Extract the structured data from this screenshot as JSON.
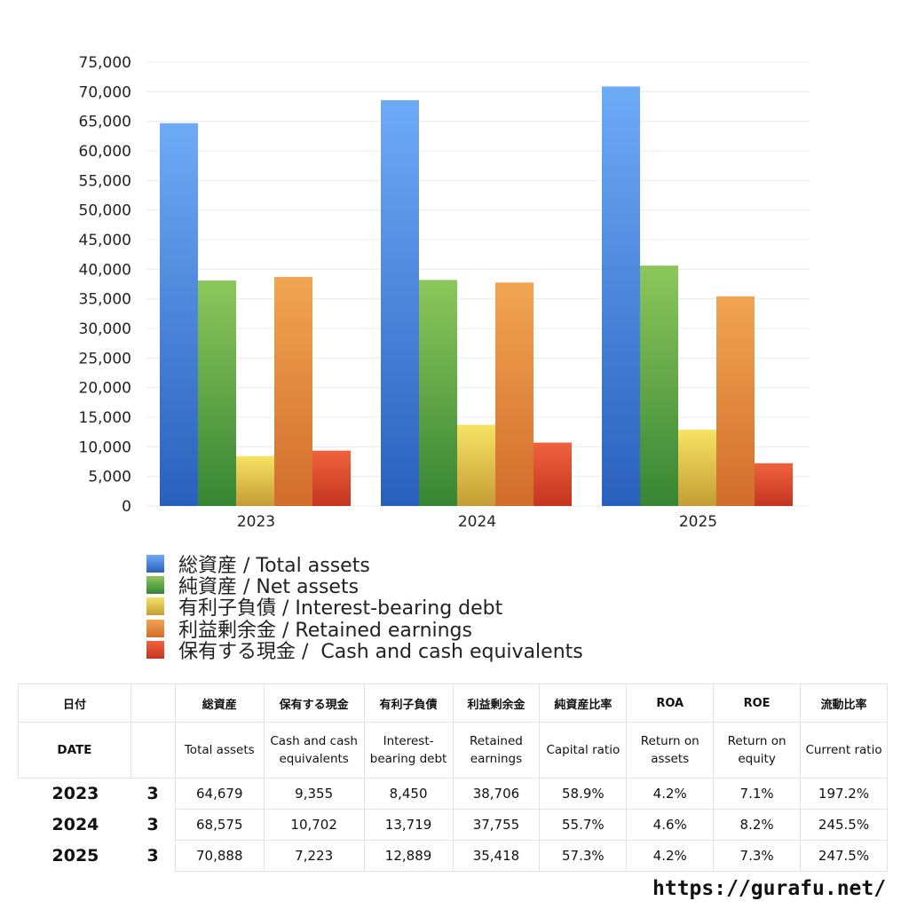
{
  "chart_data": {
    "type": "bar",
    "categories": [
      "2023",
      "2024",
      "2025"
    ],
    "ylim": [
      0,
      75000
    ],
    "yticks": [
      "0",
      "5,000",
      "10,000",
      "15,000",
      "20,000",
      "25,000",
      "30,000",
      "35,000",
      "40,000",
      "45,000",
      "50,000",
      "55,000",
      "60,000",
      "65,000",
      "70,000",
      "75,000"
    ],
    "grid": true,
    "legend_position": "bottom",
    "series": [
      {
        "name": "総資産 / Total assets",
        "values": [
          64679,
          68575,
          70888
        ],
        "colors": [
          "#6eabf7",
          "#2a60bd"
        ]
      },
      {
        "name": "純資産 / Net assets",
        "values": [
          38096,
          38196,
          40619
        ],
        "colors": [
          "#8dc75b",
          "#378534"
        ]
      },
      {
        "name": "有利子負債 / Interest-bearing debt",
        "values": [
          8450,
          13719,
          12889
        ],
        "colors": [
          "#f7e365",
          "#c49d34"
        ]
      },
      {
        "name": "利益剰余金 / Retained earnings",
        "values": [
          38706,
          37755,
          35418
        ],
        "colors": [
          "#f1a552",
          "#d26d2c"
        ]
      },
      {
        "name": "保有する現金 /  Cash and cash equivalents",
        "values": [
          9355,
          10702,
          7223
        ],
        "colors": [
          "#f0623e",
          "#c43520"
        ]
      }
    ]
  },
  "table": {
    "header_jp": [
      "日付",
      "",
      "総資産",
      "保有する現金",
      "有利子負債",
      "利益剰余金",
      "純資産比率",
      "ROA",
      "ROE",
      "流動比率"
    ],
    "header_en": [
      "DATE",
      "",
      "Total assets",
      "Cash and cash equivalents",
      "Interest-bearing debt",
      "Retained earnings",
      "Capital ratio",
      "Return on assets",
      "Return on equity",
      "Current ratio"
    ],
    "rows": [
      [
        "2023",
        "3",
        "64,679",
        "9,355",
        "8,450",
        "38,706",
        "58.9%",
        "4.2%",
        "7.1%",
        "197.2%"
      ],
      [
        "2024",
        "3",
        "68,575",
        "10,702",
        "13,719",
        "37,755",
        "55.7%",
        "4.6%",
        "8.2%",
        "245.5%"
      ],
      [
        "2025",
        "3",
        "70,888",
        "7,223",
        "12,889",
        "35,418",
        "57.3%",
        "4.2%",
        "7.3%",
        "247.5%"
      ]
    ]
  },
  "footer": {
    "url": "https://gurafu.net/"
  }
}
